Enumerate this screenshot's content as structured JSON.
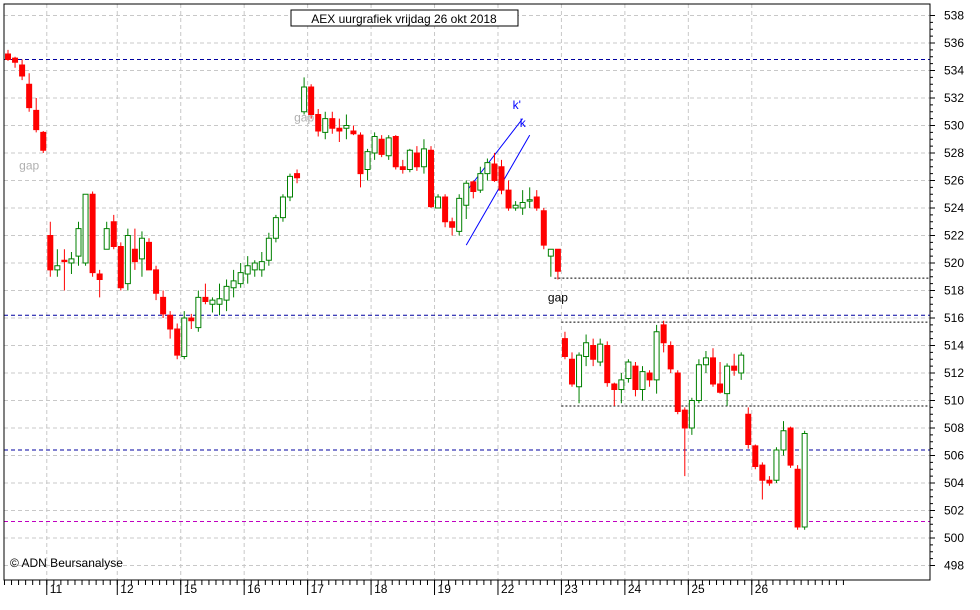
{
  "chart_data": {
    "type": "candlestick",
    "title": "AEX uurgrafiek vrijdag 26 okt 2018",
    "copyright": "© ADN Beursanalyse",
    "x_tick_labels": [
      "11",
      "12",
      "15",
      "16",
      "17",
      "18",
      "19",
      "22",
      "23",
      "24",
      "25",
      "26"
    ],
    "y_ticks": [
      498,
      500,
      502,
      504,
      506,
      508,
      510,
      512,
      514,
      516,
      518,
      520,
      522,
      524,
      526,
      528,
      530,
      532,
      534,
      536,
      538
    ],
    "ylim": [
      497.5,
      539
    ],
    "grid": true,
    "colors": {
      "up": "#008000",
      "down": "#ff0000",
      "hline": "#0000a0",
      "magenta": "#c000c0",
      "annotation": "#b0b0b0",
      "trend": "#0000ff"
    },
    "candles": [
      [
        535.2,
        535.5,
        534.7,
        534.8
      ],
      [
        534.9,
        535.0,
        534.2,
        534.6
      ],
      [
        534.4,
        534.8,
        533.3,
        533.6
      ],
      [
        533.0,
        533.8,
        531.0,
        531.3
      ],
      [
        531.1,
        532.0,
        529.5,
        529.7
      ],
      [
        529.5,
        529.6,
        528.0,
        528.2
      ],
      [
        522.0,
        523.0,
        519.0,
        519.5
      ],
      [
        519.5,
        521.0,
        519.0,
        519.8
      ],
      [
        520.2,
        521.0,
        518.0,
        520.1
      ],
      [
        520.0,
        520.8,
        519.2,
        520.3
      ],
      [
        520.5,
        523.0,
        519.8,
        522.5
      ],
      [
        520.0,
        525.0,
        519.8,
        525.0
      ],
      [
        525.0,
        525.2,
        519.0,
        519.3
      ],
      [
        519.2,
        519.5,
        517.5,
        518.8
      ],
      [
        521.0,
        523.0,
        521.0,
        522.5
      ],
      [
        523.0,
        523.5,
        521.0,
        521.2
      ],
      [
        521.2,
        521.5,
        518.0,
        518.2
      ],
      [
        518.5,
        522.5,
        518.0,
        522.0
      ],
      [
        521.0,
        522.5,
        519.5,
        520.1
      ],
      [
        520.3,
        522.3,
        519.0,
        521.8
      ],
      [
        521.5,
        521.8,
        519.5,
        519.5
      ],
      [
        519.5,
        519.8,
        517.3,
        517.8
      ],
      [
        517.5,
        518.0,
        516.0,
        516.3
      ],
      [
        516.2,
        516.5,
        514.5,
        515.2
      ],
      [
        515.2,
        515.6,
        513.0,
        513.3
      ],
      [
        513.2,
        516.5,
        513.0,
        516.0
      ],
      [
        516.0,
        516.3,
        515.2,
        515.8
      ],
      [
        515.3,
        518.0,
        515.0,
        517.5
      ],
      [
        517.5,
        518.5,
        517.0,
        517.2
      ],
      [
        517.0,
        517.5,
        516.4,
        517.3
      ],
      [
        517.0,
        518.5,
        516.2,
        517.4
      ],
      [
        517.3,
        518.8,
        516.5,
        518.3
      ],
      [
        518.2,
        519.5,
        517.5,
        518.7
      ],
      [
        518.5,
        520.0,
        518.2,
        519.3
      ],
      [
        519.2,
        520.5,
        518.5,
        519.8
      ],
      [
        519.5,
        520.2,
        519.0,
        520.0
      ],
      [
        519.5,
        520.8,
        519.0,
        520.1
      ],
      [
        520.2,
        522.2,
        519.8,
        521.8
      ],
      [
        521.8,
        523.5,
        521.5,
        523.3
      ],
      [
        523.3,
        525.0,
        523.0,
        524.8
      ],
      [
        524.8,
        526.5,
        524.5,
        526.3
      ],
      [
        526.5,
        526.8,
        525.8,
        526.2
      ],
      [
        531.0,
        533.5,
        530.8,
        532.8
      ],
      [
        532.8,
        533.0,
        530.5,
        530.8
      ],
      [
        530.8,
        531.2,
        529.2,
        529.6
      ],
      [
        529.5,
        531.0,
        529.0,
        530.5
      ],
      [
        530.5,
        531.0,
        529.4,
        529.8
      ],
      [
        529.8,
        530.5,
        528.8,
        529.6
      ],
      [
        529.8,
        530.8,
        529.0,
        530.0
      ],
      [
        529.6,
        530.0,
        529.3,
        529.4
      ],
      [
        529.3,
        529.5,
        525.5,
        526.5
      ],
      [
        526.8,
        528.3,
        526.0,
        528.1
      ],
      [
        528.0,
        529.5,
        527.5,
        529.2
      ],
      [
        529.0,
        529.3,
        527.7,
        527.9
      ],
      [
        527.8,
        529.3,
        527.5,
        529.1
      ],
      [
        529.2,
        529.3,
        526.8,
        527.0
      ],
      [
        527.0,
        527.5,
        526.5,
        526.8
      ],
      [
        526.8,
        528.3,
        526.6,
        528.2
      ],
      [
        528.0,
        528.5,
        526.7,
        527.0
      ],
      [
        527.0,
        529.0,
        526.5,
        528.3
      ],
      [
        528.2,
        528.5,
        524.0,
        524.1
      ],
      [
        524.0,
        525.0,
        524.0,
        524.8
      ],
      [
        524.8,
        525.0,
        522.6,
        523.0
      ],
      [
        523.0,
        523.3,
        522.0,
        522.6
      ],
      [
        522.3,
        525.0,
        522.0,
        524.7
      ],
      [
        524.2,
        526.0,
        523.2,
        525.8
      ],
      [
        525.9,
        526.0,
        524.7,
        525.2
      ],
      [
        525.3,
        527.0,
        525.1,
        526.5
      ],
      [
        526.5,
        527.6,
        526.0,
        527.3
      ],
      [
        527.2,
        528.0,
        525.9,
        526.0
      ],
      [
        527.0,
        527.5,
        525.0,
        525.3
      ],
      [
        525.3,
        526.0,
        523.8,
        524.0
      ],
      [
        524.0,
        524.5,
        523.8,
        524.2
      ],
      [
        524.0,
        525.3,
        523.5,
        524.4
      ],
      [
        524.5,
        525.5,
        524.0,
        524.6
      ],
      [
        524.8,
        525.3,
        523.8,
        524.0
      ],
      [
        523.8,
        524.0,
        521.0,
        521.3
      ],
      [
        520.5,
        521.0,
        519.0,
        521.0
      ],
      [
        521.0,
        521.0,
        518.8,
        519.4
      ],
      [
        514.5,
        515.0,
        513.0,
        513.2
      ],
      [
        513.0,
        513.5,
        511.0,
        511.2
      ],
      [
        511.0,
        513.5,
        509.8,
        513.3
      ],
      [
        513.2,
        514.8,
        512.5,
        514.2
      ],
      [
        514.0,
        514.5,
        512.5,
        513.0
      ],
      [
        512.8,
        514.5,
        512.5,
        514.1
      ],
      [
        514.0,
        514.3,
        511.0,
        511.3
      ],
      [
        511.2,
        511.3,
        509.6,
        510.8
      ],
      [
        510.8,
        512.0,
        509.8,
        511.5
      ],
      [
        511.6,
        513.0,
        511.3,
        512.8
      ],
      [
        512.5,
        512.8,
        510.3,
        510.8
      ],
      [
        510.8,
        512.5,
        510.0,
        512.1
      ],
      [
        512.0,
        512.2,
        511.0,
        511.5
      ],
      [
        511.5,
        515.5,
        510.5,
        515.0
      ],
      [
        515.5,
        515.8,
        513.5,
        514.2
      ],
      [
        514.0,
        514.3,
        512.0,
        512.3
      ],
      [
        512.0,
        512.2,
        509.0,
        509.2
      ],
      [
        509.3,
        509.5,
        504.5,
        508.0
      ],
      [
        508.0,
        510.2,
        507.5,
        510.0
      ],
      [
        510.0,
        513.0,
        509.8,
        512.6
      ],
      [
        512.6,
        513.6,
        512.0,
        513.1
      ],
      [
        513.1,
        513.8,
        511.0,
        511.2
      ],
      [
        511.2,
        512.8,
        510.5,
        510.6
      ],
      [
        510.5,
        512.7,
        509.6,
        512.5
      ],
      [
        512.5,
        513.4,
        511.8,
        512.2
      ],
      [
        512.0,
        513.5,
        511.5,
        513.3
      ],
      [
        509.0,
        509.5,
        506.5,
        506.8
      ],
      [
        506.7,
        506.8,
        505.0,
        505.2
      ],
      [
        505.3,
        505.5,
        502.8,
        504.2
      ],
      [
        504.2,
        504.5,
        503.8,
        504.0
      ],
      [
        504.2,
        506.6,
        504.0,
        506.4
      ],
      [
        506.4,
        508.5,
        506.0,
        507.8
      ],
      [
        508.0,
        508.1,
        505.1,
        505.3
      ],
      [
        505.0,
        505.3,
        500.6,
        500.8
      ],
      [
        500.8,
        507.8,
        500.6,
        507.6
      ]
    ],
    "horizontal_lines": [
      {
        "y": 534.8,
        "style": "dash",
        "color": "#0000a0",
        "from_bar": 0
      },
      {
        "y": 516.2,
        "style": "dash",
        "color": "#0000a0",
        "from_bar": 0
      },
      {
        "y": 506.4,
        "style": "dash",
        "color": "#0000a0",
        "from_bar": 0
      },
      {
        "y": 501.2,
        "style": "dash",
        "color": "#c000c0",
        "from_bar": 0
      },
      {
        "y": 518.9,
        "style": "dot",
        "color": "#000000",
        "from_bar": 78
      },
      {
        "y": 515.7,
        "style": "dot",
        "color": "#000000",
        "from_bar": 79
      },
      {
        "y": 509.6,
        "style": "dot",
        "color": "#000000",
        "from_bar": 79
      }
    ],
    "annotations": [
      {
        "text": "gap",
        "x_bar": 3,
        "y": 526.8,
        "color": "#b0b0b0"
      },
      {
        "text": "gap",
        "x_bar": 42,
        "y": 530.3,
        "color": "#b0b0b0"
      },
      {
        "text": "gap",
        "x_bar": 78,
        "y": 517.2,
        "color": "#000000"
      },
      {
        "text": "k'",
        "x_bar": 73,
        "y": 531.2,
        "color": "#0000ff"
      },
      {
        "text": "k",
        "x_bar": 74,
        "y": 529.9,
        "color": "#0000ff"
      }
    ],
    "trend_lines": [
      {
        "label": "k'",
        "from": [
          65,
          525.2
        ],
        "to": [
          73,
          530.5
        ]
      },
      {
        "label": "k",
        "from": [
          65,
          521.3
        ],
        "to": [
          74,
          529.3
        ]
      }
    ]
  }
}
